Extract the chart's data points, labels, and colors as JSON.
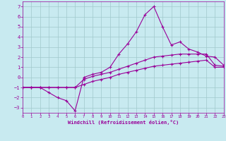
{
  "xlabel": "Windchill (Refroidissement éolien,°C)",
  "bg_color": "#c8eaf0",
  "grid_color": "#a0c8cc",
  "line_color": "#990099",
  "xlabel_color": "#990099",
  "spine_color": "#990099",
  "tick_color": "#990099",
  "xlim": [
    0,
    23
  ],
  "ylim": [
    -3.5,
    7.5
  ],
  "xticks": [
    0,
    1,
    2,
    3,
    4,
    5,
    6,
    7,
    8,
    9,
    10,
    11,
    12,
    13,
    14,
    15,
    16,
    17,
    18,
    19,
    20,
    21,
    22,
    23
  ],
  "yticks": [
    -3,
    -2,
    -1,
    0,
    1,
    2,
    3,
    4,
    5,
    6,
    7
  ],
  "line1_x": [
    0,
    1,
    2,
    3,
    4,
    5,
    6,
    7,
    8,
    9,
    10,
    11,
    12,
    13,
    14,
    15,
    16,
    17,
    18,
    19,
    20,
    21,
    22,
    23
  ],
  "line1_y": [
    -1,
    -1,
    -1,
    -1.5,
    -2,
    -2.3,
    -3.3,
    0.0,
    0.3,
    0.5,
    1.0,
    2.3,
    3.3,
    4.5,
    6.2,
    7.0,
    5.0,
    3.2,
    3.5,
    2.8,
    2.5,
    2.1,
    2.0,
    1.2
  ],
  "line2_x": [
    0,
    1,
    2,
    3,
    4,
    5,
    6,
    7,
    8,
    9,
    10,
    11,
    12,
    13,
    14,
    15,
    16,
    17,
    18,
    19,
    20,
    21,
    22,
    23
  ],
  "line2_y": [
    -1,
    -1,
    -1,
    -1,
    -1,
    -1,
    -1,
    -0.2,
    0.1,
    0.3,
    0.5,
    0.8,
    1.1,
    1.4,
    1.7,
    2.0,
    2.1,
    2.2,
    2.3,
    2.3,
    2.3,
    2.3,
    1.2,
    1.1
  ],
  "line3_x": [
    0,
    1,
    2,
    3,
    4,
    5,
    6,
    7,
    8,
    9,
    10,
    11,
    12,
    13,
    14,
    15,
    16,
    17,
    18,
    19,
    20,
    21,
    22,
    23
  ],
  "line3_y": [
    -1,
    -1,
    -1,
    -1,
    -1,
    -1,
    -1,
    -0.7,
    -0.4,
    -0.2,
    0.0,
    0.3,
    0.5,
    0.7,
    0.9,
    1.1,
    1.2,
    1.3,
    1.4,
    1.5,
    1.6,
    1.7,
    1.0,
    1.0
  ]
}
